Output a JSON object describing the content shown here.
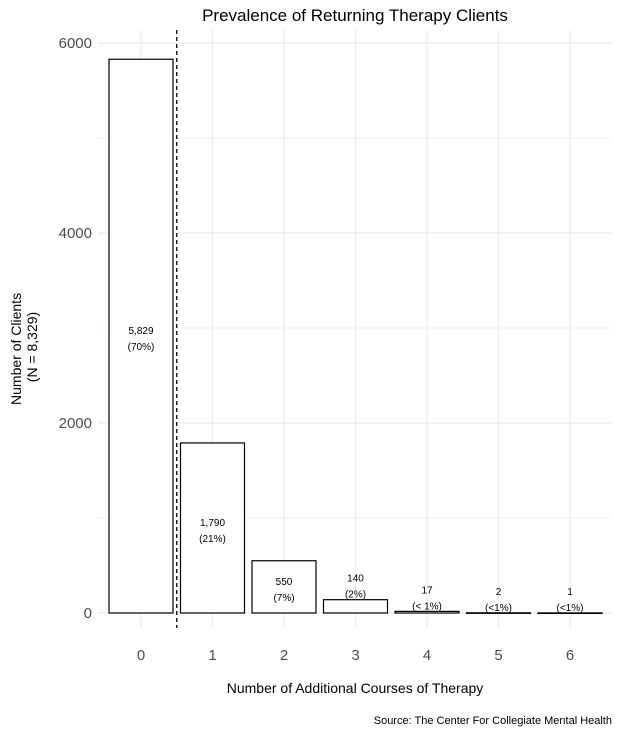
{
  "chart_data": {
    "type": "bar",
    "title": "Prevalence of Returning Therapy Clients",
    "xlabel": "Number of Additional Courses of Therapy",
    "ylabel_lines": [
      "Number of Clients",
      "(N = 8,329)"
    ],
    "caption": "Source: The Center For Collegiate Mental Health",
    "categories": [
      "0",
      "1",
      "2",
      "3",
      "4",
      "5",
      "6"
    ],
    "values": [
      5829,
      1790,
      550,
      140,
      17,
      2,
      1
    ],
    "count_labels": [
      "5,829",
      "1,790",
      "550",
      "140",
      "17",
      "2",
      "1"
    ],
    "percent_labels": [
      "(70%)",
      "(21%)",
      "(7%)",
      "(2%)",
      "(< 1%)",
      "(<1%)",
      "(<1%)"
    ],
    "ylim": [
      0,
      6000
    ],
    "yticks": [
      0,
      2000,
      4000,
      6000
    ],
    "yticks_minor": [
      1000,
      3000,
      5000
    ],
    "ytick_labels": [
      "0",
      "2000",
      "4000",
      "6000"
    ],
    "reference_line_x": 0.5,
    "grid": true,
    "bar_fill": "#ffffff",
    "bar_stroke": "#000000",
    "grid_color": "#ebebeb"
  }
}
